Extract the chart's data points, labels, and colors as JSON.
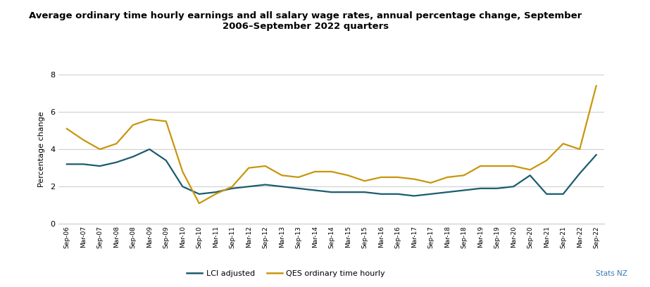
{
  "title": "Average ordinary time hourly earnings and all salary wage rates, annual percentage change, September\n2006–September 2022 quarters",
  "ylabel": "Percentage change",
  "ylim": [
    0,
    8
  ],
  "yticks": [
    0,
    2,
    4,
    6,
    8
  ],
  "xlabel": "",
  "background_color": "#ffffff",
  "plot_area_color": "#ffffff",
  "grid_color": "#d0d0d0",
  "legend_labels": [
    "LCI adjusted",
    "QES ordinary time hourly"
  ],
  "lci_color": "#1a5c6e",
  "qes_color": "#c8960c",
  "stats_nz_color": "#3a7ab5",
  "x_labels": [
    "Sep-06",
    "Mar-07",
    "Sep-07",
    "Mar-08",
    "Sep-08",
    "Mar-09",
    "Sep-09",
    "Mar-10",
    "Sep-10",
    "Mar-11",
    "Sep-11",
    "Mar-12",
    "Sep-12",
    "Mar-13",
    "Sep-13",
    "Mar-14",
    "Sep-14",
    "Mar-15",
    "Sep-15",
    "Mar-16",
    "Sep-16",
    "Mar-17",
    "Sep-17",
    "Mar-18",
    "Sep-18",
    "Mar-19",
    "Sep-19",
    "Mar-20",
    "Sep-20",
    "Mar-21",
    "Sep-21",
    "Mar-22",
    "Sep-22"
  ],
  "lci_values": [
    3.2,
    3.2,
    3.1,
    3.3,
    3.6,
    4.0,
    3.4,
    2.0,
    1.6,
    1.7,
    1.9,
    2.0,
    2.1,
    2.0,
    1.9,
    1.8,
    1.7,
    1.7,
    1.7,
    1.6,
    1.6,
    1.5,
    1.6,
    1.7,
    1.8,
    1.9,
    1.9,
    2.0,
    2.6,
    1.6,
    1.6,
    2.7,
    3.7
  ],
  "qes_values": [
    5.1,
    4.5,
    4.0,
    4.3,
    5.3,
    5.6,
    5.5,
    2.8,
    1.1,
    1.6,
    2.0,
    3.0,
    3.1,
    2.6,
    2.5,
    2.8,
    2.8,
    2.6,
    2.3,
    2.5,
    2.5,
    2.4,
    2.2,
    2.5,
    2.6,
    3.1,
    3.1,
    3.1,
    2.9,
    3.4,
    4.3,
    4.0,
    7.4
  ]
}
